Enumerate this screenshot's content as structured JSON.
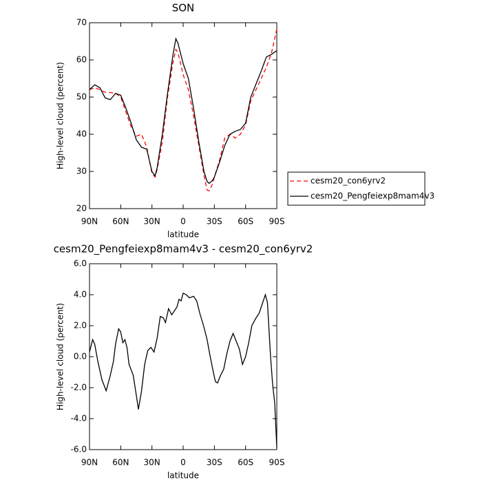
{
  "chart_data": [
    {
      "type": "line",
      "title": "SON",
      "xlabel": "latitude",
      "ylabel": "High-level cloud (percent)",
      "x": [
        90,
        85,
        80,
        75,
        70,
        65,
        60,
        55,
        50,
        45,
        40,
        35,
        30,
        27,
        25,
        20,
        15,
        10,
        7,
        5,
        0,
        -5,
        -10,
        -15,
        -20,
        -23,
        -25,
        -28,
        -30,
        -35,
        -40,
        -45,
        -50,
        -55,
        -60,
        -65,
        -70,
        -75,
        -80,
        -85,
        -90
      ],
      "series": [
        {
          "name": "cesm20_con6yrv2",
          "color": "#ff0000",
          "linestyle": "dashed",
          "values": [
            52,
            52.5,
            52,
            51.3,
            51.2,
            51,
            50,
            46,
            42,
            39.5,
            40,
            36.5,
            29.5,
            28.5,
            30.5,
            38,
            50,
            59,
            62.8,
            62,
            56,
            52,
            45,
            37,
            29,
            25,
            24.8,
            26.5,
            28.5,
            33,
            39,
            40,
            39,
            40,
            42.5,
            49,
            52,
            55,
            58,
            62,
            68.3
          ]
        },
        {
          "name": "cesm20_Pengfeiexp8mam4v3",
          "color": "#000000",
          "linestyle": "solid",
          "values": [
            52,
            53.3,
            52.5,
            49.8,
            49.3,
            51,
            50.5,
            47,
            43,
            38.5,
            36.5,
            36,
            30,
            28.8,
            31,
            40,
            51,
            61,
            65.7,
            64.5,
            59,
            55,
            47,
            38,
            30,
            27.3,
            26.8,
            27.5,
            28.5,
            32.5,
            37,
            40,
            40.8,
            41.3,
            43,
            50,
            53.5,
            57,
            60.8,
            61.5,
            62.5
          ]
        }
      ],
      "xlim": [
        90,
        -90
      ],
      "xticks": [
        {
          "value": 90,
          "label": "90N"
        },
        {
          "value": 60,
          "label": "60N"
        },
        {
          "value": 30,
          "label": "30N"
        },
        0,
        {
          "value": -30,
          "label": "30S"
        },
        {
          "value": -60,
          "label": "60S"
        },
        {
          "value": -90,
          "label": "90S"
        }
      ],
      "ylim": [
        20,
        70
      ],
      "yticks": [
        20,
        30,
        40,
        50,
        60,
        70
      ],
      "legend": "right"
    },
    {
      "type": "line",
      "title": "cesm20_Pengfeiexp8mam4v3 - cesm20_con6yrv2",
      "xlabel": "latitude",
      "ylabel": "High-level cloud (percent)",
      "x": [
        90,
        87,
        85,
        82,
        78,
        74,
        70,
        67,
        65,
        62,
        60,
        58,
        56,
        54,
        52,
        48,
        45,
        43,
        40,
        37,
        34,
        31,
        28,
        25,
        22,
        19,
        17,
        14,
        11,
        9,
        6,
        4,
        2,
        0,
        -3,
        -6,
        -10,
        -13,
        -16,
        -20,
        -23,
        -26,
        -29,
        -31,
        -33,
        -36,
        -39,
        -42,
        -45,
        -48,
        -51,
        -54,
        -57,
        -60,
        -63,
        -66,
        -70,
        -73,
        -76,
        -79,
        -81,
        -84,
        -86,
        -88,
        -90
      ],
      "color": "#000000",
      "values": [
        0.3,
        1.1,
        0.8,
        -0.3,
        -1.5,
        -2.2,
        -1.2,
        -0.3,
        0.8,
        1.8,
        1.6,
        0.9,
        1.1,
        0.6,
        -0.5,
        -1.2,
        -2.5,
        -3.4,
        -2.2,
        -0.5,
        0.4,
        0.6,
        0.3,
        1.2,
        2.6,
        2.5,
        2.2,
        3.1,
        2.7,
        2.9,
        3.2,
        3.7,
        3.6,
        4.1,
        4.0,
        3.8,
        3.9,
        3.6,
        2.8,
        1.9,
        1.1,
        0,
        -1.0,
        -1.6,
        -1.7,
        -1.2,
        -0.8,
        0.2,
        1.0,
        1.5,
        1.0,
        0.5,
        -0.5,
        0,
        0.9,
        2.0,
        2.5,
        2.8,
        3.4,
        4.0,
        3.5,
        0.0,
        -1.8,
        -3.0,
        -5.9
      ],
      "xlim": [
        90,
        -90
      ],
      "xticks": [
        {
          "value": 90,
          "label": "90N"
        },
        {
          "value": 60,
          "label": "60N"
        },
        {
          "value": 30,
          "label": "30N"
        },
        0,
        {
          "value": -30,
          "label": "30S"
        },
        {
          "value": -60,
          "label": "60S"
        },
        {
          "value": -90,
          "label": "90S"
        }
      ],
      "ylim": [
        -6,
        6
      ],
      "yticks": [
        {
          "value": -6,
          "label": "-6.0"
        },
        {
          "value": -4,
          "label": "-4.0"
        },
        {
          "value": -2,
          "label": "-2.0"
        },
        {
          "value": 0,
          "label": "0.0"
        },
        {
          "value": 2,
          "label": "2.0"
        },
        {
          "value": 4,
          "label": "4.0"
        },
        {
          "value": 6,
          "label": "6.0"
        }
      ]
    }
  ]
}
